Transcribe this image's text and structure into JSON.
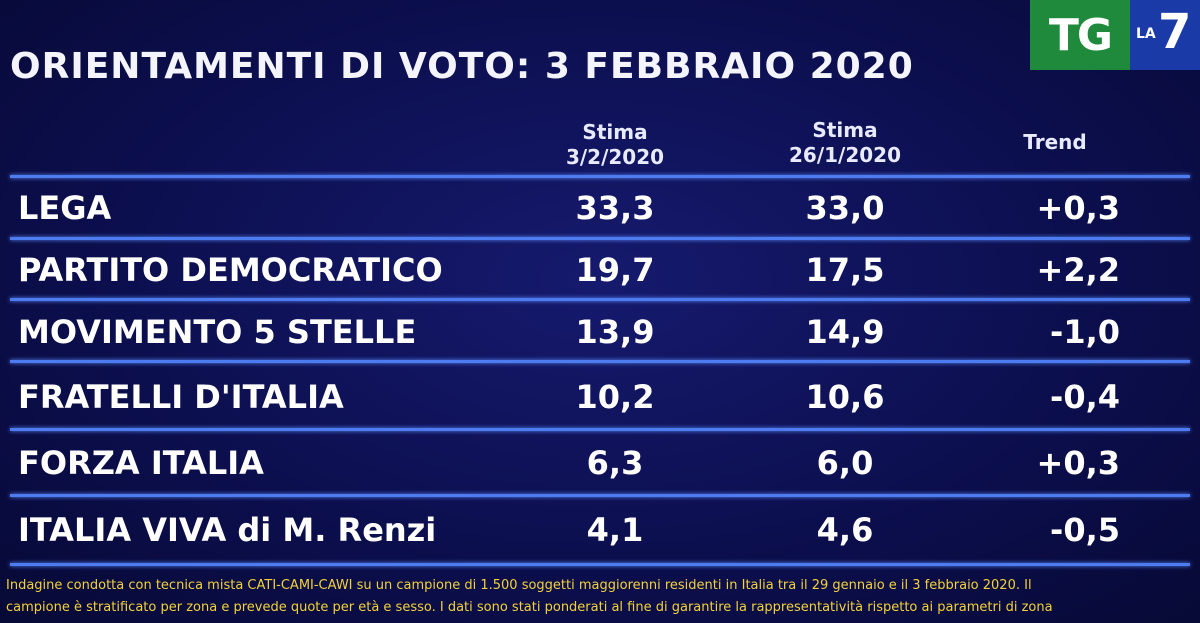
{
  "title": "ORIENTAMENTI DI VOTO: 3 FEBBRAIO 2020",
  "logo": {
    "tg": "TG",
    "la": "LA",
    "seven": "7"
  },
  "columns": {
    "c1_line1": "Stima",
    "c1_line2": "3/2/2020",
    "c2_line1": "Stima",
    "c2_line2": "26/1/2020",
    "c3": "Trend"
  },
  "rows": [
    {
      "party": "LEGA",
      "stima_3_2": "33,3",
      "stima_26_1": "33,0",
      "trend": "+0,3"
    },
    {
      "party": "PARTITO DEMOCRATICO",
      "stima_3_2": "19,7",
      "stima_26_1": "17,5",
      "trend": "+2,2"
    },
    {
      "party": "MOVIMENTO 5 STELLE",
      "stima_3_2": "13,9",
      "stima_26_1": "14,9",
      "trend": "-1,0"
    },
    {
      "party": "FRATELLI D'ITALIA",
      "stima_3_2": "10,2",
      "stima_26_1": "10,6",
      "trend": "-0,4"
    },
    {
      "party": "FORZA ITALIA",
      "stima_3_2": "6,3",
      "stima_26_1": "6,0",
      "trend": "+0,3"
    },
    {
      "party": "ITALIA VIVA di M. Renzi",
      "stima_3_2": "4,1",
      "stima_26_1": "4,6",
      "trend": "-0,5"
    }
  ],
  "footnote": {
    "line1": "Indagine condotta con tecnica mista CATI-CAMI-CAWI su un campione di 1.500 soggetti maggiorenni residenti in Italia tra il 29 gennaio e il 3 febbraio 2020. Il",
    "line2": "campione è stratificato per zona e prevede quote per età e sesso. I dati sono stati ponderati al fine di garantire la rappresentatività rispetto ai parametri di zona"
  },
  "colors": {
    "background": "#0c0f4f",
    "rule": "#4d7cf0",
    "footnote": "#f2d23a",
    "logo_green": "#1f8a3c",
    "logo_blue": "#1a3aa8"
  }
}
